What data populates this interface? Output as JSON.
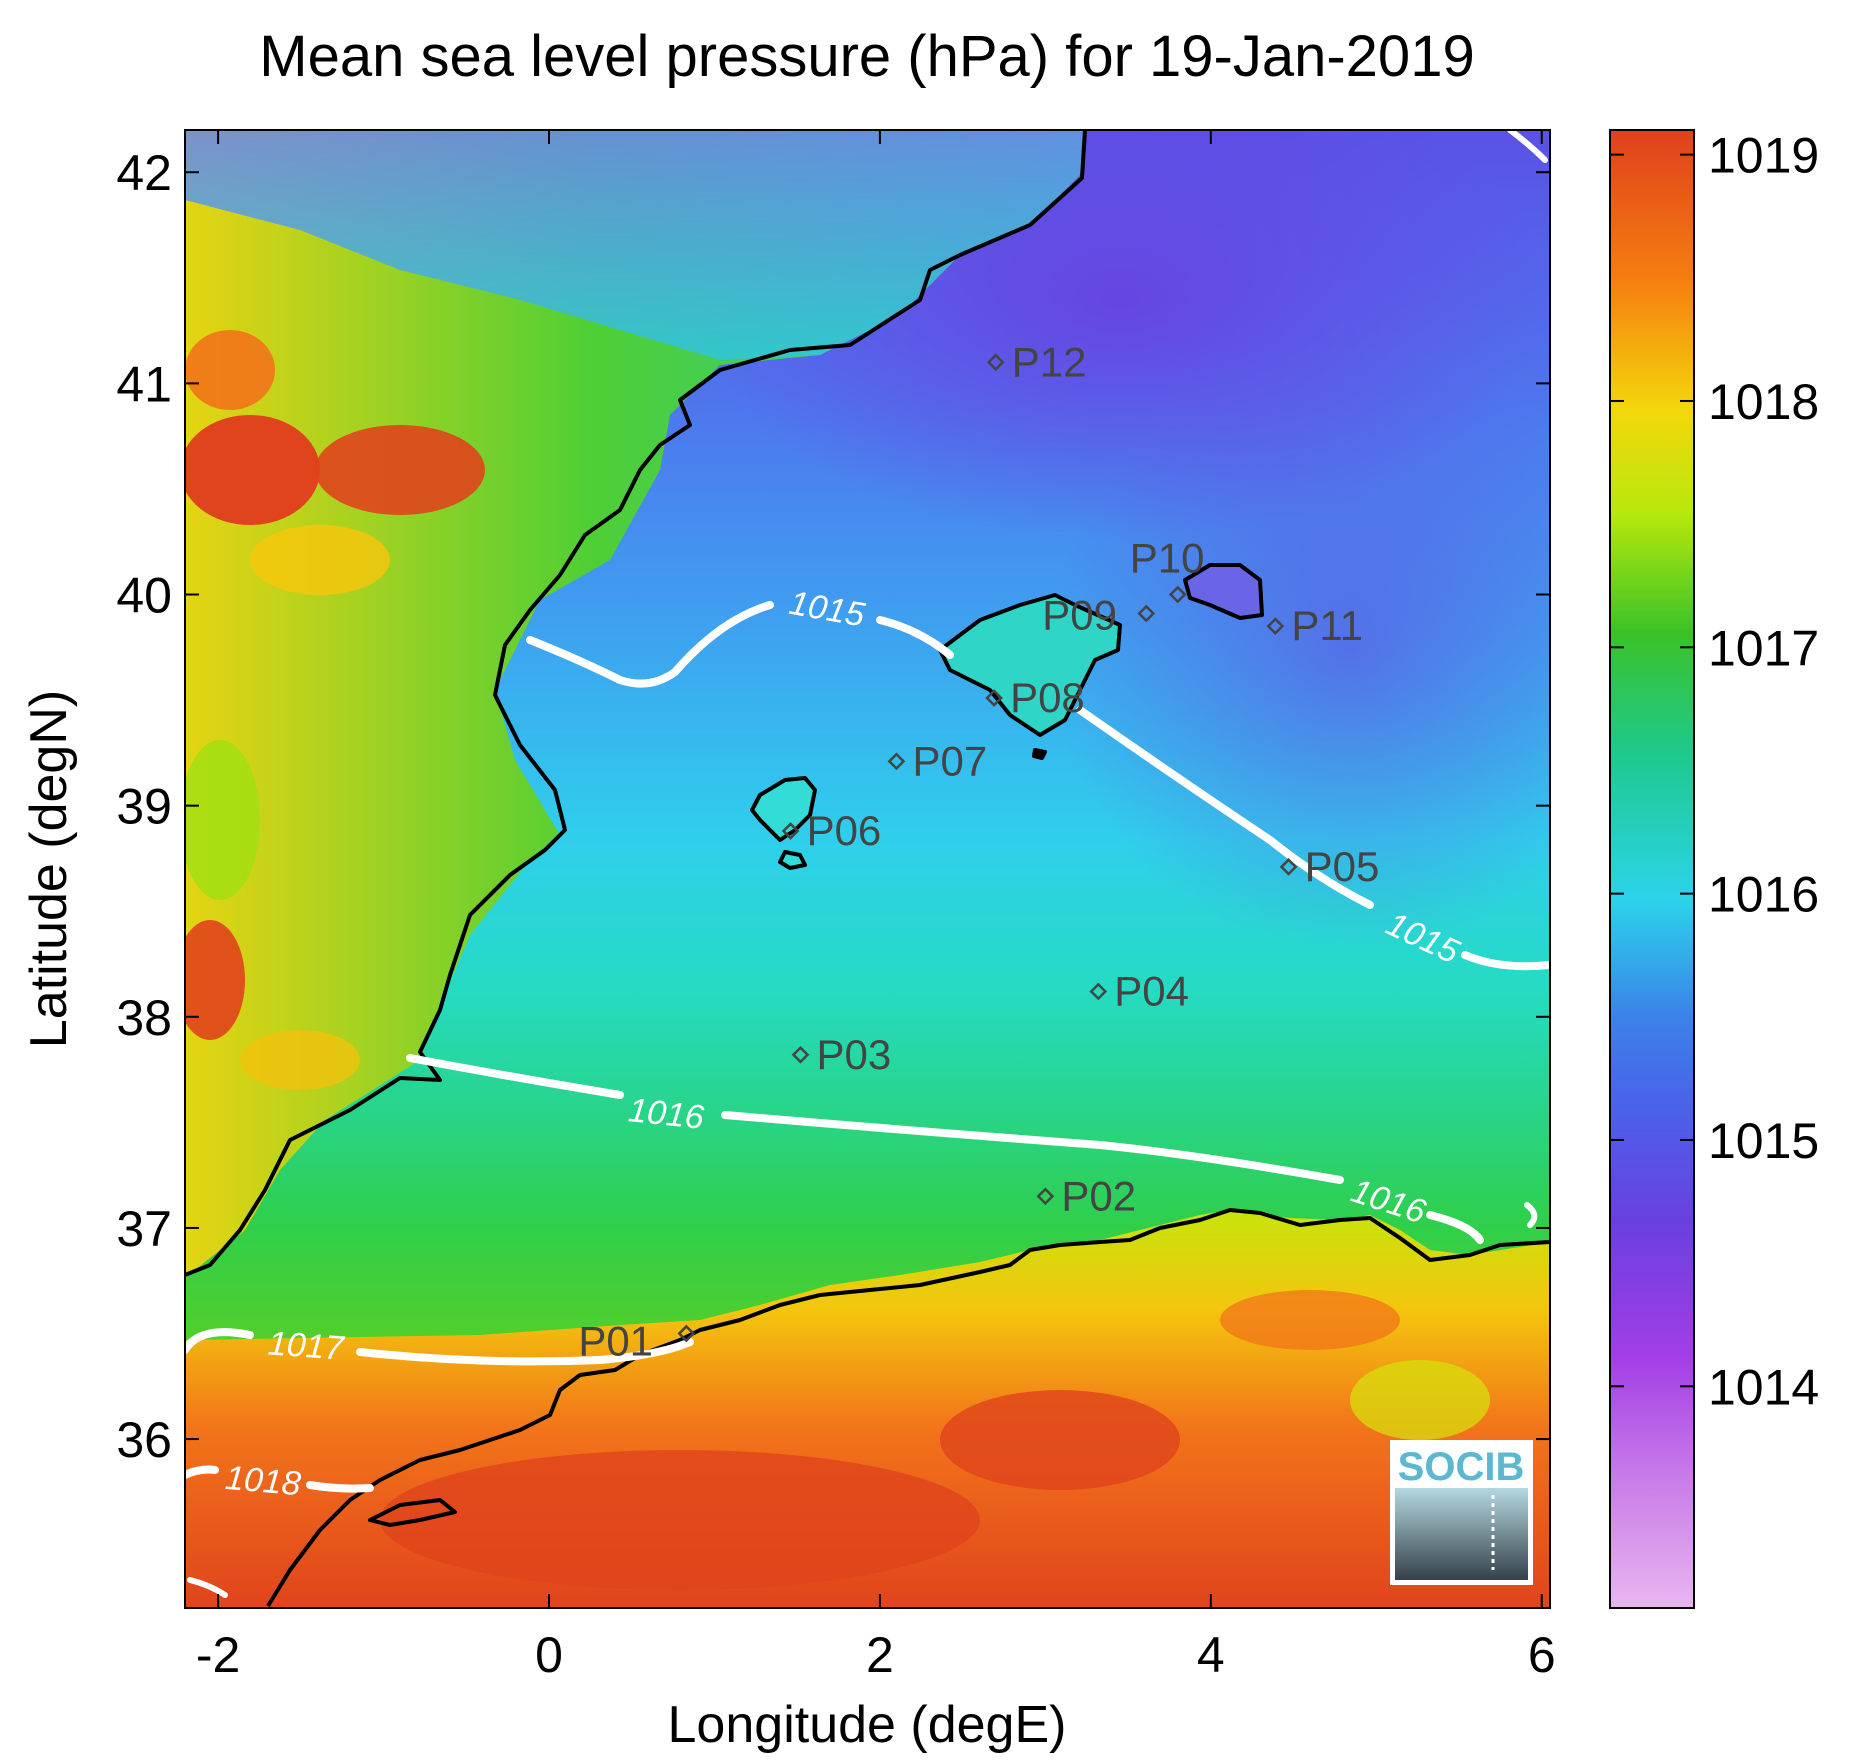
{
  "title": "Mean sea level pressure (hPa) for 19-Jan-2019",
  "xlabel": "Longitude (degE)",
  "ylabel": "Latitude (degN)",
  "x_ticks": [
    "-2",
    "0",
    "2",
    "4",
    "6"
  ],
  "y_ticks": [
    "42",
    "41",
    "40",
    "39",
    "38",
    "37",
    "36"
  ],
  "colorbar": {
    "ticks": [
      "1019",
      "1018",
      "1017",
      "1016",
      "1015",
      "1014"
    ],
    "range": [
      1013.1,
      1019.1
    ],
    "colors": [
      "#e8b6f0",
      "#a33ee6",
      "#6a3fe0",
      "#3b82e8",
      "#2bd4ea",
      "#1ec98a",
      "#3bc228",
      "#b7e80c",
      "#f4d70b",
      "#f57d10",
      "#e0401c"
    ]
  },
  "contour_labels": {
    "c1015a": "1015",
    "c1015b": "1015",
    "c1016a": "1016",
    "c1016b": "1016",
    "c1017": "1017",
    "c1018": "1018"
  },
  "points": {
    "p01": "P01",
    "p02": "P02",
    "p03": "P03",
    "p04": "P04",
    "p05": "P05",
    "p06": "P06",
    "p07": "P07",
    "p08": "P08",
    "p09": "P09",
    "p10": "P10",
    "p11": "P11",
    "p12": "P12"
  },
  "logo_text": "SOCIB",
  "map_extent": {
    "lon": [
      -2.2,
      6.05
    ],
    "lat": [
      35.2,
      42.2
    ]
  },
  "chart_data": {
    "type": "heatmap",
    "title": "Mean sea level pressure (hPa) for 19-Jan-2019",
    "xlabel": "Longitude (degE)",
    "ylabel": "Latitude (degN)",
    "xlim": [
      -2.2,
      6.05
    ],
    "ylim": [
      35.2,
      42.2
    ],
    "colorbar_range": [
      1013.1,
      1019.1
    ],
    "contour_levels": [
      1015,
      1016,
      1017,
      1018
    ],
    "stations": [
      {
        "name": "P01",
        "lon": 0.83,
        "lat": 36.5
      },
      {
        "name": "P02",
        "lon": 3.0,
        "lat": 37.15
      },
      {
        "name": "P03",
        "lon": 1.52,
        "lat": 37.82
      },
      {
        "name": "P04",
        "lon": 3.32,
        "lat": 38.12
      },
      {
        "name": "P05",
        "lon": 4.47,
        "lat": 38.71
      },
      {
        "name": "P06",
        "lon": 1.46,
        "lat": 38.88
      },
      {
        "name": "P07",
        "lon": 2.1,
        "lat": 39.21
      },
      {
        "name": "P08",
        "lon": 2.69,
        "lat": 39.51
      },
      {
        "name": "P09",
        "lon": 3.61,
        "lat": 39.91
      },
      {
        "name": "P10",
        "lon": 3.8,
        "lat": 40.0
      },
      {
        "name": "P11",
        "lon": 4.39,
        "lat": 39.85
      },
      {
        "name": "P12",
        "lon": 2.7,
        "lat": 41.1
      }
    ]
  }
}
